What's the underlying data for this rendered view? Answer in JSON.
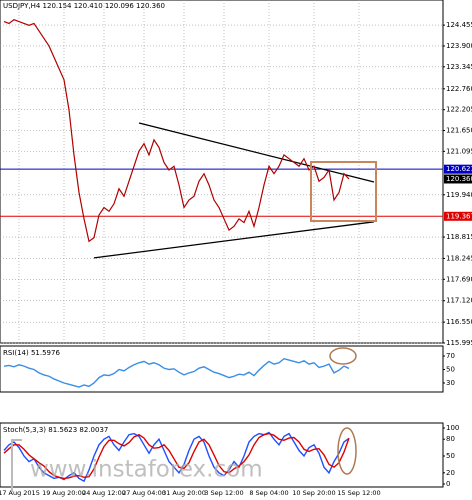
{
  "watermark": "www.instaforex.com",
  "chart_data": [
    {
      "type": "line",
      "title": "USDJPY,H4  120.154 120.410 120.096 120.360",
      "categories": [
        null,
        null,
        null,
        "17 Aug 2015",
        null,
        null,
        null,
        null,
        null,
        null,
        null,
        null,
        "19 Aug 20:00",
        null,
        null,
        null,
        null,
        null,
        null,
        null,
        "24 Aug 12:00",
        null,
        null,
        null,
        null,
        null,
        null,
        null,
        "27 Aug 04:00",
        null,
        null,
        null,
        null,
        null,
        null,
        null,
        "31 Aug 20:00",
        null,
        null,
        null,
        null,
        null,
        null,
        null,
        "3 Sep 12:00",
        null,
        null,
        null,
        null,
        null,
        null,
        null,
        null,
        "8 Sep 04:00",
        null,
        null,
        null,
        null,
        null,
        null,
        null,
        null,
        "10 Sep 20:00",
        null,
        null,
        null,
        null,
        null,
        null,
        null,
        null,
        "15 Sep 12:00"
      ],
      "series": [
        {
          "color": "#b00000",
          "values": [
            124.55,
            124.5,
            124.6,
            124.55,
            124.5,
            124.45,
            124.5,
            124.3,
            124.1,
            123.9,
            123.6,
            123.3,
            123.0,
            122.2,
            121.0,
            120.0,
            119.3,
            118.7,
            118.8,
            119.4,
            119.6,
            119.5,
            119.7,
            120.1,
            119.9,
            120.3,
            120.7,
            121.1,
            121.3,
            121.0,
            121.4,
            121.2,
            120.8,
            120.6,
            120.7,
            120.2,
            119.6,
            119.8,
            119.9,
            120.3,
            120.5,
            120.2,
            119.8,
            119.6,
            119.3,
            119.0,
            119.1,
            119.3,
            119.2,
            119.5,
            119.1,
            119.6,
            120.2,
            120.7,
            120.5,
            120.7,
            121.0,
            120.9,
            120.8,
            120.7,
            120.9,
            120.6,
            120.7,
            120.3,
            120.4,
            120.6,
            119.8,
            120.0,
            120.5,
            120.36,
            null,
            null
          ]
        }
      ],
      "ylim": [
        115.995,
        125.07
      ],
      "yticks": [
        115.995,
        {
          "value": 116.55,
          "label": "116.550"
        },
        {
          "value": 117.12,
          "label": "117.120"
        },
        {
          "value": 117.69,
          "label": "117.690"
        },
        118.245,
        118.815,
        {
          "value": 119.94,
          "label": "119.940"
        },
        121.095,
        {
          "value": 121.65,
          "label": "121.650"
        },
        122.205,
        {
          "value": 122.76,
          "label": "122.760"
        },
        123.345,
        {
          "value": 123.9,
          "label": "123.900"
        },
        124.455
      ],
      "grid": true,
      "levels": [
        {
          "value": 120.621,
          "color": "#0000c8"
        },
        {
          "value": 119.367,
          "color": "#e00000"
        },
        {
          "value": 120.36,
          "label": "120.360",
          "color": "#000000",
          "line": false
        }
      ],
      "trendlines": [
        {
          "x": [
            27,
            74
          ],
          "y": [
            121.85,
            120.28
          ]
        },
        {
          "x": [
            18,
            74
          ],
          "y": [
            118.26,
            119.22
          ]
        }
      ]
    },
    {
      "type": "line",
      "title": "RSI(14) 51.5976",
      "series": [
        {
          "color": "#3a8ee6",
          "values": [
            55,
            56,
            54,
            57,
            55,
            52,
            50,
            45,
            42,
            40,
            36,
            33,
            30,
            28,
            26,
            24,
            27,
            25,
            30,
            38,
            42,
            41,
            44,
            50,
            48,
            53,
            57,
            60,
            62,
            58,
            60,
            57,
            52,
            50,
            51,
            46,
            42,
            45,
            47,
            52,
            54,
            50,
            46,
            44,
            41,
            38,
            40,
            43,
            42,
            46,
            41,
            49,
            56,
            62,
            58,
            60,
            66,
            64,
            62,
            60,
            63,
            58,
            60,
            53,
            55,
            58,
            45,
            49,
            55,
            51.5976,
            null,
            null
          ]
        }
      ],
      "ylim": [
        19.6,
        81.9
      ],
      "yticks": [
        30,
        50,
        70
      ]
    },
    {
      "type": "line",
      "title": "Stoch(5,3,3) 81.5623 82.0037",
      "series": [
        {
          "color": "#1e50ff",
          "values": [
            60,
            70,
            75,
            65,
            50,
            40,
            45,
            30,
            20,
            15,
            10,
            12,
            8,
            15,
            20,
            10,
            5,
            25,
            50,
            70,
            80,
            85,
            70,
            60,
            75,
            88,
            90,
            85,
            70,
            55,
            70,
            80,
            60,
            40,
            30,
            20,
            35,
            60,
            80,
            85,
            75,
            50,
            30,
            20,
            15,
            25,
            40,
            30,
            50,
            75,
            85,
            90,
            88,
            92,
            80,
            70,
            85,
            90,
            75,
            60,
            50,
            65,
            70,
            55,
            30,
            20,
            40,
            55,
            75,
            81.5623,
            null,
            null
          ]
        },
        {
          "color": "#e00000",
          "values": [
            55,
            63,
            70,
            70,
            62,
            52,
            45,
            38,
            32,
            22,
            15,
            12,
            10,
            11,
            14,
            15,
            12,
            13,
            27,
            48,
            67,
            78,
            78,
            72,
            68,
            74,
            84,
            88,
            82,
            70,
            64,
            65,
            70,
            60,
            45,
            30,
            28,
            38,
            58,
            75,
            80,
            70,
            52,
            33,
            22,
            20,
            27,
            32,
            40,
            52,
            70,
            83,
            88,
            90,
            87,
            80,
            78,
            82,
            83,
            75,
            62,
            58,
            62,
            63,
            52,
            35,
            30,
            38,
            57,
            82.0037,
            null,
            null
          ]
        }
      ],
      "ylim": [
        0,
        100
      ],
      "yticks": [
        0,
        20,
        50,
        80,
        100
      ]
    }
  ]
}
